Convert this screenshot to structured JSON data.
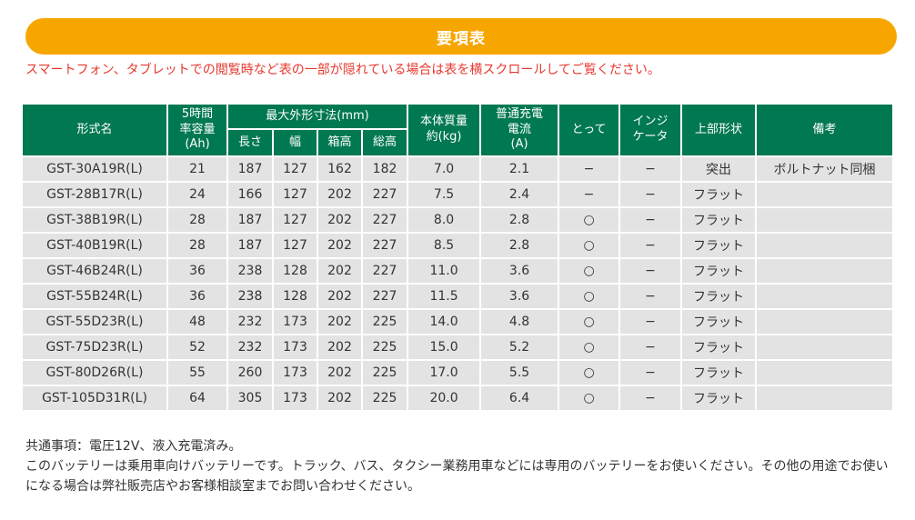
{
  "page": {
    "banner_title": "要項表",
    "notice": "スマートフォン、タブレットでの閲覧時など表の一部が隠れている場合は表を横スクロールしてご覧ください。",
    "colors": {
      "banner_bg": "#F7A600",
      "table_header_bg": "#007852",
      "table_row_bg": "#E3E3E3",
      "notice_text": "#E8382F",
      "body_text": "#333333"
    }
  },
  "table": {
    "headers": {
      "model": "形式名",
      "capacity": "5時間\n率容量\n(Ah)",
      "dimensions_group": "最大外形寸法(mm)",
      "length": "長さ",
      "width": "幅",
      "box_height": "箱高",
      "total_height": "総高",
      "weight": "本体質量\n約(kg)",
      "current": "普通充電\n電流\n(A)",
      "handle": "とって",
      "indicator": "インジ\nケータ",
      "top_shape": "上部形状",
      "remarks": "備考"
    },
    "rows": [
      {
        "model": "GST-30A19R(L)",
        "capacity": "21",
        "length": "187",
        "width": "127",
        "box_height": "162",
        "total_height": "182",
        "weight": "7.0",
        "current": "2.1",
        "handle": "−",
        "indicator": "−",
        "top_shape": "突出",
        "remarks": "ボルトナット同梱"
      },
      {
        "model": "GST-28B17R(L)",
        "capacity": "24",
        "length": "166",
        "width": "127",
        "box_height": "202",
        "total_height": "227",
        "weight": "7.5",
        "current": "2.4",
        "handle": "−",
        "indicator": "−",
        "top_shape": "フラット",
        "remarks": ""
      },
      {
        "model": "GST-38B19R(L)",
        "capacity": "28",
        "length": "187",
        "width": "127",
        "box_height": "202",
        "total_height": "227",
        "weight": "8.0",
        "current": "2.8",
        "handle": "○",
        "indicator": "−",
        "top_shape": "フラット",
        "remarks": ""
      },
      {
        "model": "GST-40B19R(L)",
        "capacity": "28",
        "length": "187",
        "width": "127",
        "box_height": "202",
        "total_height": "227",
        "weight": "8.5",
        "current": "2.8",
        "handle": "○",
        "indicator": "−",
        "top_shape": "フラット",
        "remarks": ""
      },
      {
        "model": "GST-46B24R(L)",
        "capacity": "36",
        "length": "238",
        "width": "128",
        "box_height": "202",
        "total_height": "227",
        "weight": "11.0",
        "current": "3.6",
        "handle": "○",
        "indicator": "−",
        "top_shape": "フラット",
        "remarks": ""
      },
      {
        "model": "GST-55B24R(L)",
        "capacity": "36",
        "length": "238",
        "width": "128",
        "box_height": "202",
        "total_height": "227",
        "weight": "11.5",
        "current": "3.6",
        "handle": "○",
        "indicator": "−",
        "top_shape": "フラット",
        "remarks": ""
      },
      {
        "model": "GST-55D23R(L)",
        "capacity": "48",
        "length": "232",
        "width": "173",
        "box_height": "202",
        "total_height": "225",
        "weight": "14.0",
        "current": "4.8",
        "handle": "○",
        "indicator": "−",
        "top_shape": "フラット",
        "remarks": ""
      },
      {
        "model": "GST-75D23R(L)",
        "capacity": "52",
        "length": "232",
        "width": "173",
        "box_height": "202",
        "total_height": "225",
        "weight": "15.0",
        "current": "5.2",
        "handle": "○",
        "indicator": "−",
        "top_shape": "フラット",
        "remarks": ""
      },
      {
        "model": "GST-80D26R(L)",
        "capacity": "55",
        "length": "260",
        "width": "173",
        "box_height": "202",
        "total_height": "225",
        "weight": "17.0",
        "current": "5.5",
        "handle": "○",
        "indicator": "−",
        "top_shape": "フラット",
        "remarks": ""
      },
      {
        "model": "GST-105D31R(L)",
        "capacity": "64",
        "length": "305",
        "width": "173",
        "box_height": "202",
        "total_height": "225",
        "weight": "20.0",
        "current": "6.4",
        "handle": "○",
        "indicator": "−",
        "top_shape": "フラット",
        "remarks": ""
      }
    ]
  },
  "footnotes": {
    "common": "共通事項：電圧12V、液入充電済み。",
    "usage": "このバッテリーは乗用車向けバッテリーです。トラック、バス、タクシー業務用車などには専用のバッテリーをお使いください。その他の用途でお使いになる場合は弊社販売店やお客様相談室までお問い合わせください。"
  }
}
